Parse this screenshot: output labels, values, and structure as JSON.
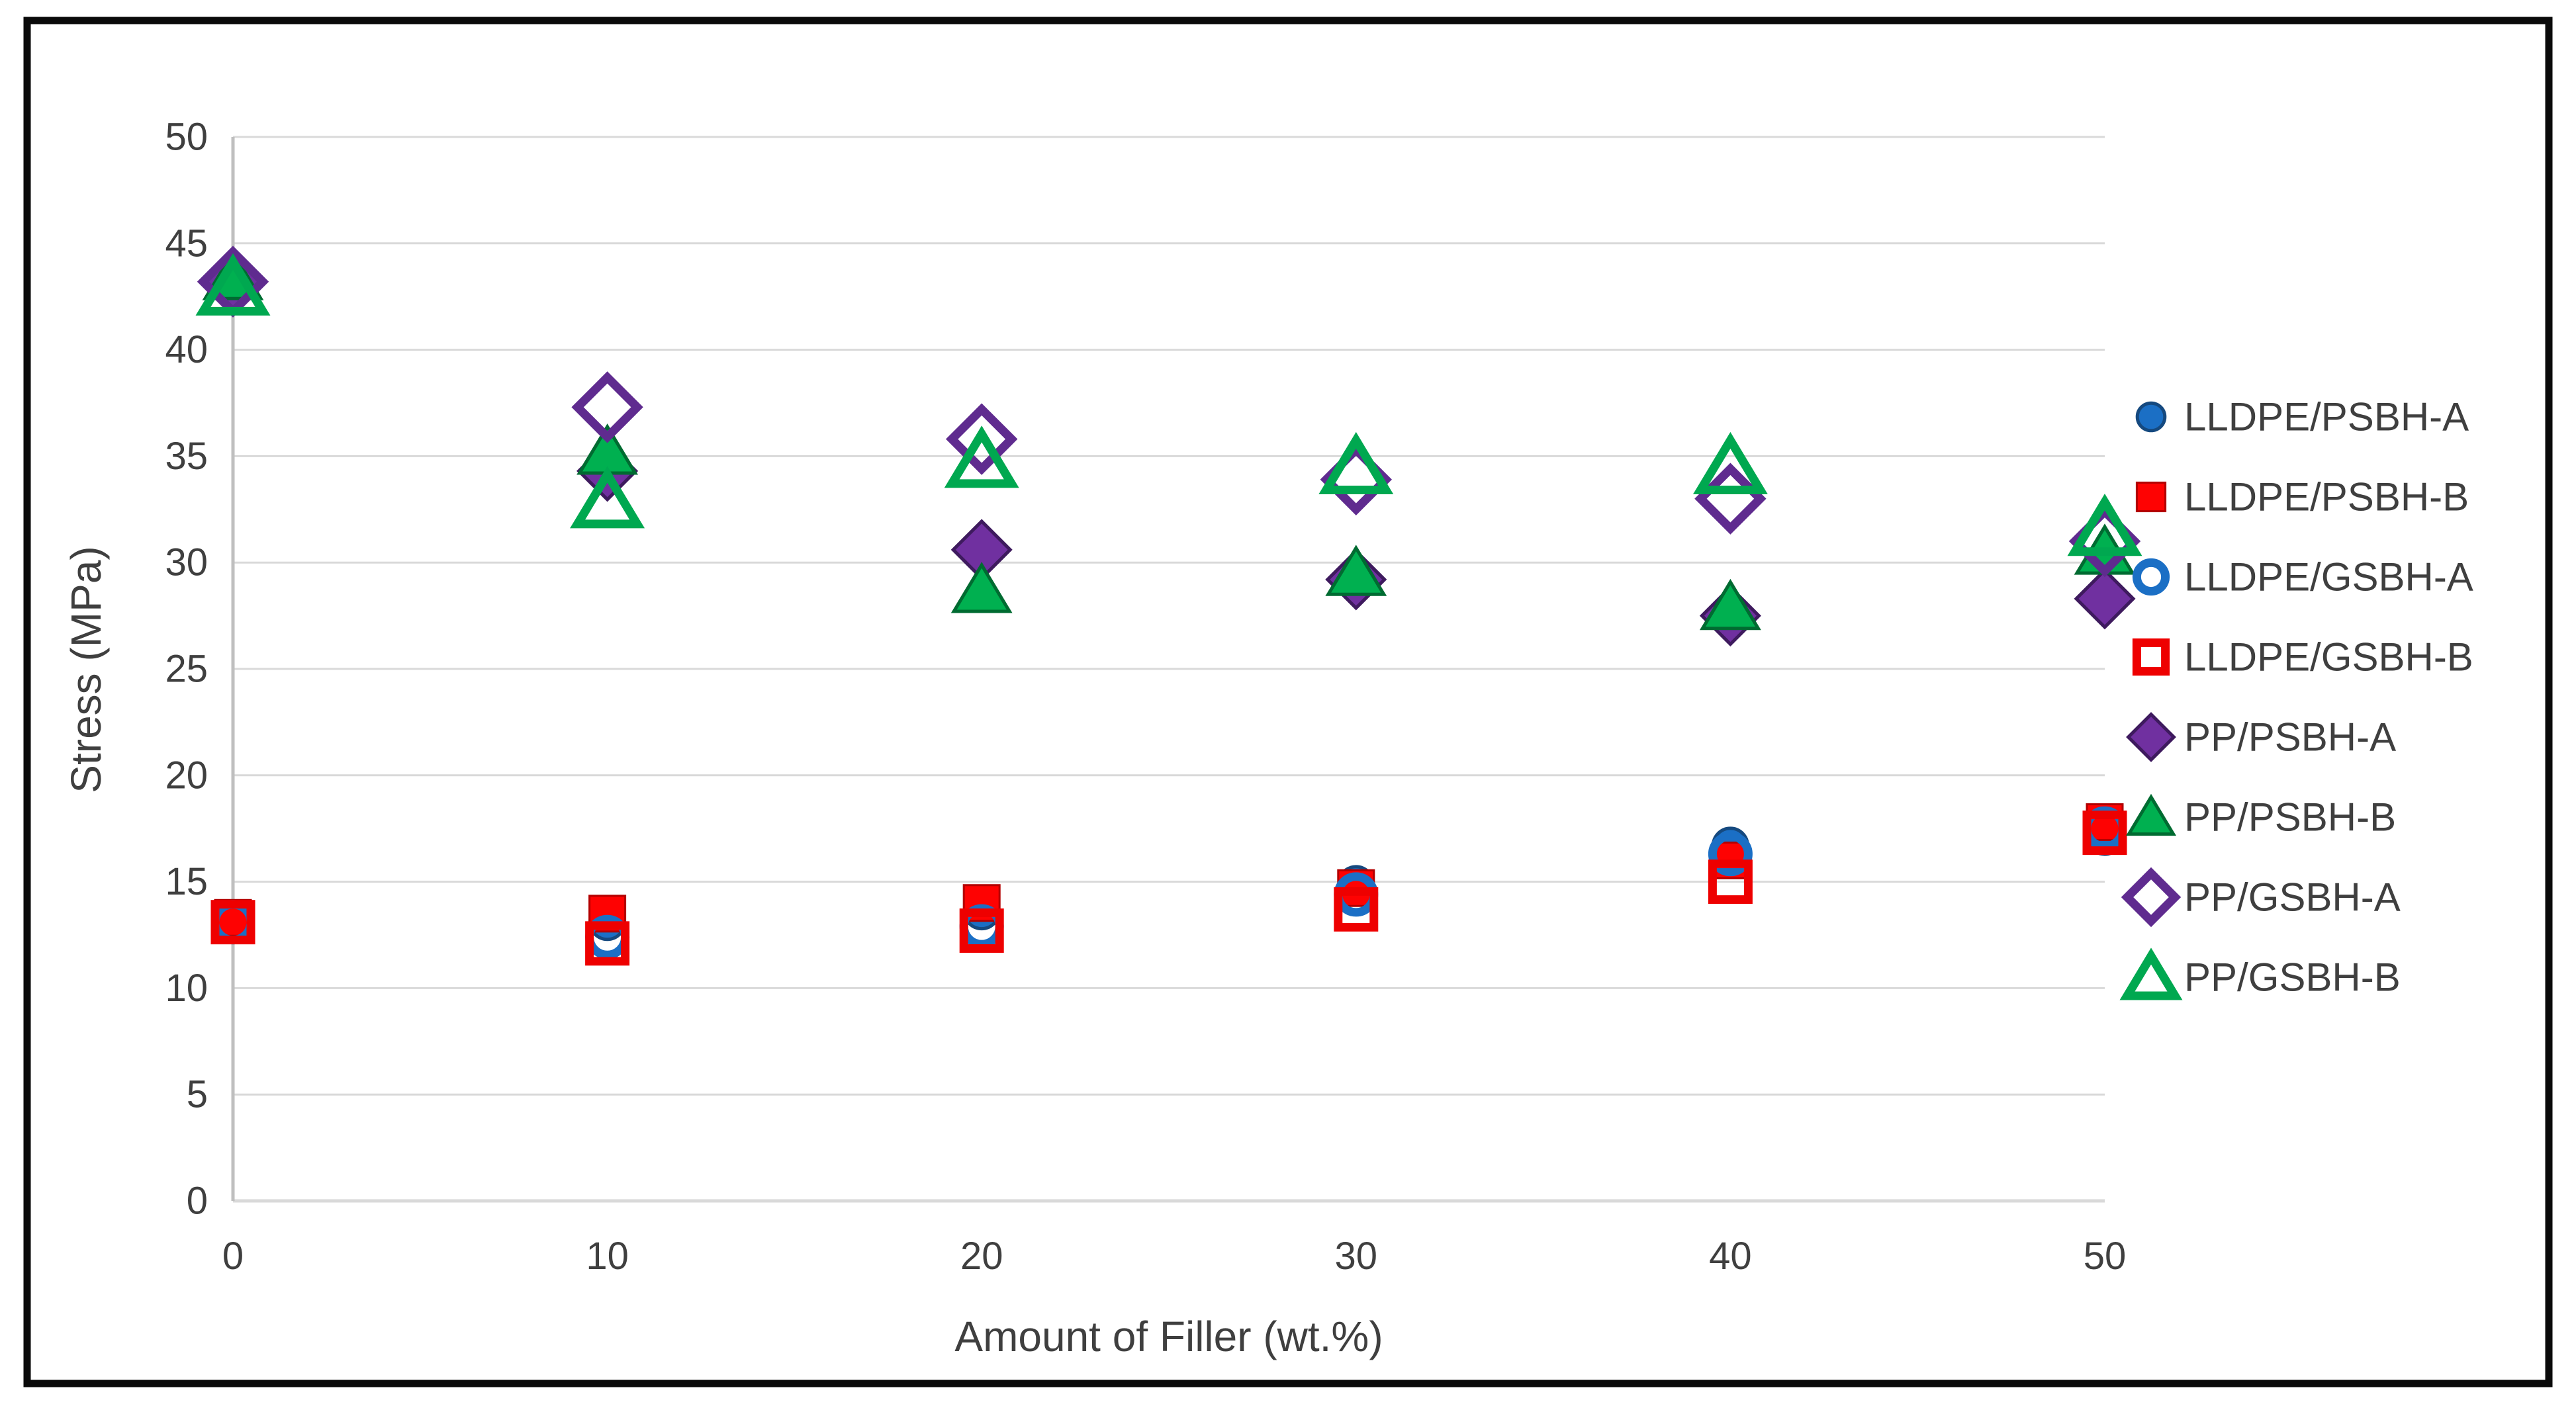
{
  "figure": {
    "background": "#ffffff",
    "border_color": "#0a0a0a",
    "text_color": "#3f3f3f",
    "gridline_color": "#d9d9d9",
    "axis_line_color": "#bfbfbf"
  },
  "chart_data": {
    "type": "scatter",
    "title": "",
    "xlabel": "Amount of Filler (wt.%)",
    "ylabel": "Stress (MPa)",
    "xlim": [
      0,
      50
    ],
    "ylim": [
      0,
      50
    ],
    "x_ticks": [
      0,
      10,
      20,
      30,
      40,
      50
    ],
    "y_ticks": [
      0,
      5,
      10,
      15,
      20,
      25,
      30,
      35,
      40,
      45,
      50
    ],
    "grid": "horizontal",
    "legend_position": "right",
    "x": [
      0,
      10,
      20,
      30,
      40,
      50
    ],
    "series": [
      {
        "name": "LLDPE/PSBH-A",
        "marker": "circle",
        "filled": true,
        "color": "#1b6fc5",
        "outline": "#15497f",
        "values": [
          13.2,
          13.1,
          13.6,
          14.9,
          16.7,
          17.1
        ]
      },
      {
        "name": "LLDPE/PSBH-B",
        "marker": "square",
        "filled": true,
        "color": "#fe0202",
        "outline": "#b30000",
        "values": [
          13.3,
          13.5,
          14.0,
          14.7,
          16.0,
          17.8
        ]
      },
      {
        "name": "LLDPE/GSBH-A",
        "marker": "circle-open",
        "filled": false,
        "color": "#1b6fc5",
        "outline": "#123d6e",
        "values": [
          13.1,
          12.4,
          12.9,
          14.4,
          16.3,
          17.5
        ]
      },
      {
        "name": "LLDPE/GSBH-B",
        "marker": "square-open",
        "filled": false,
        "color": "#ee0000",
        "outline": "#a50000",
        "values": [
          13.1,
          12.1,
          12.7,
          13.7,
          15.0,
          17.3
        ]
      },
      {
        "name": "PP/PSBH-A",
        "marker": "diamond",
        "filled": true,
        "color": "#7030a0",
        "outline": "#3e1a5e",
        "values": [
          43.2,
          34.3,
          30.6,
          29.2,
          27.5,
          28.3
        ]
      },
      {
        "name": "PP/PSBH-B",
        "marker": "triangle",
        "filled": true,
        "color": "#00b050",
        "outline": "#006b31",
        "values": [
          43.4,
          35.2,
          28.7,
          29.5,
          27.9,
          30.5
        ]
      },
      {
        "name": "PP/GSBH-A",
        "marker": "diamond-open",
        "filled": false,
        "color": "#5f2b8f",
        "outline": "#3e1a5e",
        "values": [
          43.2,
          37.3,
          35.8,
          33.9,
          33.0,
          31.0
        ]
      },
      {
        "name": "PP/GSBH-B",
        "marker": "triangle-open",
        "filled": false,
        "color": "#00a850",
        "outline": "#006b31",
        "values": [
          42.9,
          32.9,
          34.8,
          34.5,
          34.5,
          31.6
        ]
      }
    ]
  }
}
